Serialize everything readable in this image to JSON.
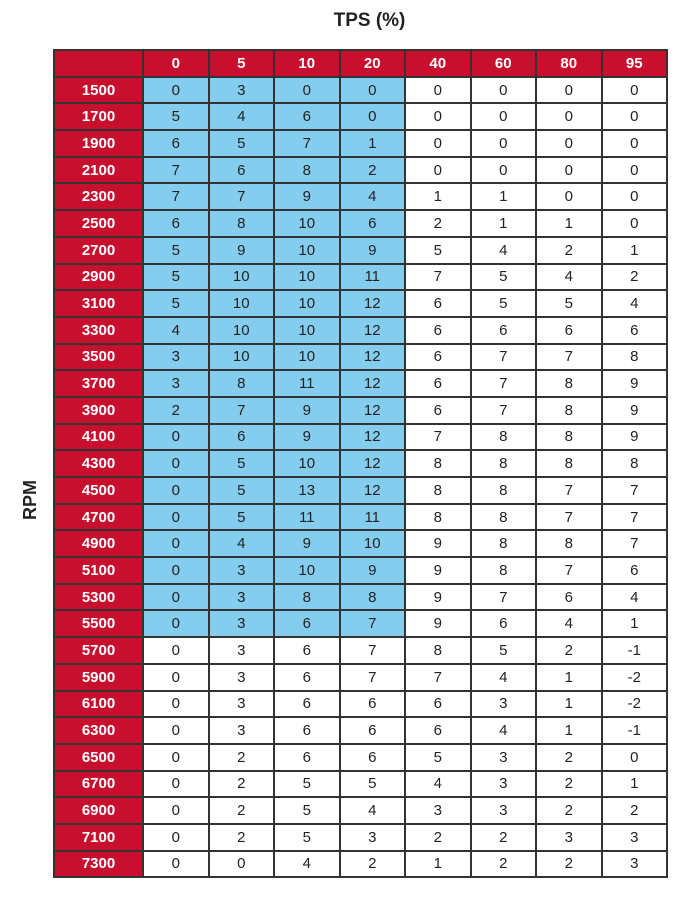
{
  "chart_data": {
    "type": "table",
    "title": "TPS (%)",
    "ylabel": "RPM",
    "columns": [
      "0",
      "5",
      "10",
      "20",
      "40",
      "60",
      "80",
      "95"
    ],
    "rows": [
      "1500",
      "1700",
      "1900",
      "2100",
      "2300",
      "2500",
      "2700",
      "2900",
      "3100",
      "3300",
      "3500",
      "3700",
      "3900",
      "4100",
      "4300",
      "4500",
      "4700",
      "4900",
      "5100",
      "5300",
      "5500",
      "5700",
      "5900",
      "6100",
      "6300",
      "6500",
      "6700",
      "6900",
      "7100",
      "7300"
    ],
    "values": [
      [
        0,
        3,
        0,
        0,
        0,
        0,
        0,
        0
      ],
      [
        5,
        4,
        6,
        0,
        0,
        0,
        0,
        0
      ],
      [
        6,
        5,
        7,
        1,
        0,
        0,
        0,
        0
      ],
      [
        7,
        6,
        8,
        2,
        0,
        0,
        0,
        0
      ],
      [
        7,
        7,
        9,
        4,
        1,
        1,
        0,
        0
      ],
      [
        6,
        8,
        10,
        6,
        2,
        1,
        1,
        0
      ],
      [
        5,
        9,
        10,
        9,
        5,
        4,
        2,
        1
      ],
      [
        5,
        10,
        10,
        11,
        7,
        5,
        4,
        2
      ],
      [
        5,
        10,
        10,
        12,
        6,
        5,
        5,
        4
      ],
      [
        4,
        10,
        10,
        12,
        6,
        6,
        6,
        6
      ],
      [
        3,
        10,
        10,
        12,
        6,
        7,
        7,
        8
      ],
      [
        3,
        8,
        11,
        12,
        6,
        7,
        8,
        9
      ],
      [
        2,
        7,
        9,
        12,
        6,
        7,
        8,
        9
      ],
      [
        0,
        6,
        9,
        12,
        7,
        8,
        8,
        9
      ],
      [
        0,
        5,
        10,
        12,
        8,
        8,
        8,
        8
      ],
      [
        0,
        5,
        13,
        12,
        8,
        8,
        7,
        7
      ],
      [
        0,
        5,
        11,
        11,
        8,
        8,
        7,
        7
      ],
      [
        0,
        4,
        9,
        10,
        9,
        8,
        8,
        7
      ],
      [
        0,
        3,
        10,
        9,
        9,
        8,
        7,
        6
      ],
      [
        0,
        3,
        8,
        8,
        9,
        7,
        6,
        4
      ],
      [
        0,
        3,
        6,
        7,
        9,
        6,
        4,
        1
      ],
      [
        0,
        3,
        6,
        7,
        8,
        5,
        2,
        -1
      ],
      [
        0,
        3,
        6,
        7,
        7,
        4,
        1,
        -2
      ],
      [
        0,
        3,
        6,
        6,
        6,
        3,
        1,
        -2
      ],
      [
        0,
        3,
        6,
        6,
        6,
        4,
        1,
        -1
      ],
      [
        0,
        2,
        6,
        6,
        5,
        3,
        2,
        0
      ],
      [
        0,
        2,
        5,
        5,
        4,
        3,
        2,
        1
      ],
      [
        0,
        2,
        5,
        4,
        3,
        3,
        2,
        2
      ],
      [
        0,
        2,
        5,
        3,
        2,
        2,
        3,
        3
      ],
      [
        0,
        0,
        4,
        2,
        1,
        2,
        2,
        3
      ]
    ],
    "highlight": {
      "rows_from": "1500",
      "rows_to": "5500",
      "columns": [
        "0",
        "5",
        "10",
        "20"
      ]
    },
    "colors": {
      "header": "#c8102e",
      "highlight": "#85cdee",
      "cell": "#ffffff",
      "border": "#333333"
    }
  }
}
